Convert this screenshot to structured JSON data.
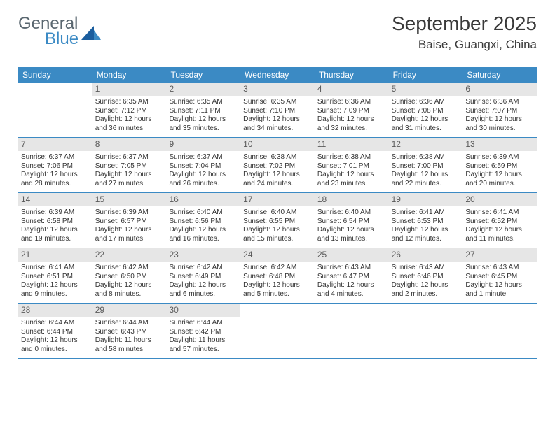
{
  "logo": {
    "general": "General",
    "blue": "Blue"
  },
  "title": "September 2025",
  "location": "Baise, Guangxi, China",
  "colors": {
    "header_blue": "#3b8ac4",
    "daybar_gray": "#e6e6e6",
    "text": "#333333",
    "logo_gray": "#5a6770"
  },
  "dow": [
    "Sunday",
    "Monday",
    "Tuesday",
    "Wednesday",
    "Thursday",
    "Friday",
    "Saturday"
  ],
  "weeks": [
    [
      {
        "n": "",
        "sunrise": "",
        "sunset": "",
        "daylight": ""
      },
      {
        "n": "1",
        "sunrise": "Sunrise: 6:35 AM",
        "sunset": "Sunset: 7:12 PM",
        "daylight": "Daylight: 12 hours and 36 minutes."
      },
      {
        "n": "2",
        "sunrise": "Sunrise: 6:35 AM",
        "sunset": "Sunset: 7:11 PM",
        "daylight": "Daylight: 12 hours and 35 minutes."
      },
      {
        "n": "3",
        "sunrise": "Sunrise: 6:35 AM",
        "sunset": "Sunset: 7:10 PM",
        "daylight": "Daylight: 12 hours and 34 minutes."
      },
      {
        "n": "4",
        "sunrise": "Sunrise: 6:36 AM",
        "sunset": "Sunset: 7:09 PM",
        "daylight": "Daylight: 12 hours and 32 minutes."
      },
      {
        "n": "5",
        "sunrise": "Sunrise: 6:36 AM",
        "sunset": "Sunset: 7:08 PM",
        "daylight": "Daylight: 12 hours and 31 minutes."
      },
      {
        "n": "6",
        "sunrise": "Sunrise: 6:36 AM",
        "sunset": "Sunset: 7:07 PM",
        "daylight": "Daylight: 12 hours and 30 minutes."
      }
    ],
    [
      {
        "n": "7",
        "sunrise": "Sunrise: 6:37 AM",
        "sunset": "Sunset: 7:06 PM",
        "daylight": "Daylight: 12 hours and 28 minutes."
      },
      {
        "n": "8",
        "sunrise": "Sunrise: 6:37 AM",
        "sunset": "Sunset: 7:05 PM",
        "daylight": "Daylight: 12 hours and 27 minutes."
      },
      {
        "n": "9",
        "sunrise": "Sunrise: 6:37 AM",
        "sunset": "Sunset: 7:04 PM",
        "daylight": "Daylight: 12 hours and 26 minutes."
      },
      {
        "n": "10",
        "sunrise": "Sunrise: 6:38 AM",
        "sunset": "Sunset: 7:02 PM",
        "daylight": "Daylight: 12 hours and 24 minutes."
      },
      {
        "n": "11",
        "sunrise": "Sunrise: 6:38 AM",
        "sunset": "Sunset: 7:01 PM",
        "daylight": "Daylight: 12 hours and 23 minutes."
      },
      {
        "n": "12",
        "sunrise": "Sunrise: 6:38 AM",
        "sunset": "Sunset: 7:00 PM",
        "daylight": "Daylight: 12 hours and 22 minutes."
      },
      {
        "n": "13",
        "sunrise": "Sunrise: 6:39 AM",
        "sunset": "Sunset: 6:59 PM",
        "daylight": "Daylight: 12 hours and 20 minutes."
      }
    ],
    [
      {
        "n": "14",
        "sunrise": "Sunrise: 6:39 AM",
        "sunset": "Sunset: 6:58 PM",
        "daylight": "Daylight: 12 hours and 19 minutes."
      },
      {
        "n": "15",
        "sunrise": "Sunrise: 6:39 AM",
        "sunset": "Sunset: 6:57 PM",
        "daylight": "Daylight: 12 hours and 17 minutes."
      },
      {
        "n": "16",
        "sunrise": "Sunrise: 6:40 AM",
        "sunset": "Sunset: 6:56 PM",
        "daylight": "Daylight: 12 hours and 16 minutes."
      },
      {
        "n": "17",
        "sunrise": "Sunrise: 6:40 AM",
        "sunset": "Sunset: 6:55 PM",
        "daylight": "Daylight: 12 hours and 15 minutes."
      },
      {
        "n": "18",
        "sunrise": "Sunrise: 6:40 AM",
        "sunset": "Sunset: 6:54 PM",
        "daylight": "Daylight: 12 hours and 13 minutes."
      },
      {
        "n": "19",
        "sunrise": "Sunrise: 6:41 AM",
        "sunset": "Sunset: 6:53 PM",
        "daylight": "Daylight: 12 hours and 12 minutes."
      },
      {
        "n": "20",
        "sunrise": "Sunrise: 6:41 AM",
        "sunset": "Sunset: 6:52 PM",
        "daylight": "Daylight: 12 hours and 11 minutes."
      }
    ],
    [
      {
        "n": "21",
        "sunrise": "Sunrise: 6:41 AM",
        "sunset": "Sunset: 6:51 PM",
        "daylight": "Daylight: 12 hours and 9 minutes."
      },
      {
        "n": "22",
        "sunrise": "Sunrise: 6:42 AM",
        "sunset": "Sunset: 6:50 PM",
        "daylight": "Daylight: 12 hours and 8 minutes."
      },
      {
        "n": "23",
        "sunrise": "Sunrise: 6:42 AM",
        "sunset": "Sunset: 6:49 PM",
        "daylight": "Daylight: 12 hours and 6 minutes."
      },
      {
        "n": "24",
        "sunrise": "Sunrise: 6:42 AM",
        "sunset": "Sunset: 6:48 PM",
        "daylight": "Daylight: 12 hours and 5 minutes."
      },
      {
        "n": "25",
        "sunrise": "Sunrise: 6:43 AM",
        "sunset": "Sunset: 6:47 PM",
        "daylight": "Daylight: 12 hours and 4 minutes."
      },
      {
        "n": "26",
        "sunrise": "Sunrise: 6:43 AM",
        "sunset": "Sunset: 6:46 PM",
        "daylight": "Daylight: 12 hours and 2 minutes."
      },
      {
        "n": "27",
        "sunrise": "Sunrise: 6:43 AM",
        "sunset": "Sunset: 6:45 PM",
        "daylight": "Daylight: 12 hours and 1 minute."
      }
    ],
    [
      {
        "n": "28",
        "sunrise": "Sunrise: 6:44 AM",
        "sunset": "Sunset: 6:44 PM",
        "daylight": "Daylight: 12 hours and 0 minutes."
      },
      {
        "n": "29",
        "sunrise": "Sunrise: 6:44 AM",
        "sunset": "Sunset: 6:43 PM",
        "daylight": "Daylight: 11 hours and 58 minutes."
      },
      {
        "n": "30",
        "sunrise": "Sunrise: 6:44 AM",
        "sunset": "Sunset: 6:42 PM",
        "daylight": "Daylight: 11 hours and 57 minutes."
      },
      {
        "n": "",
        "sunrise": "",
        "sunset": "",
        "daylight": ""
      },
      {
        "n": "",
        "sunrise": "",
        "sunset": "",
        "daylight": ""
      },
      {
        "n": "",
        "sunrise": "",
        "sunset": "",
        "daylight": ""
      },
      {
        "n": "",
        "sunrise": "",
        "sunset": "",
        "daylight": ""
      }
    ]
  ]
}
